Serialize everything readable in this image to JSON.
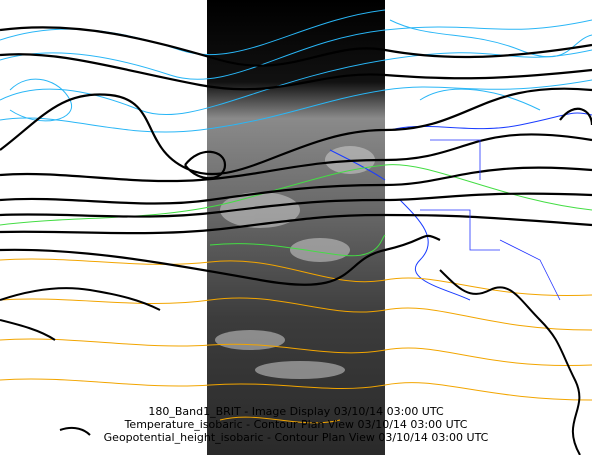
{
  "captions": {
    "lines": [
      "180_Band1_BRIT - Image Display 03/10/14 03:00 UTC",
      "Temperature_isobaric - Contour Plan View 03/10/14 03:00 UTC",
      "Geopotential_height_isobaric - Contour Plan View 03/10/14 03:00 UTC"
    ]
  }
}
